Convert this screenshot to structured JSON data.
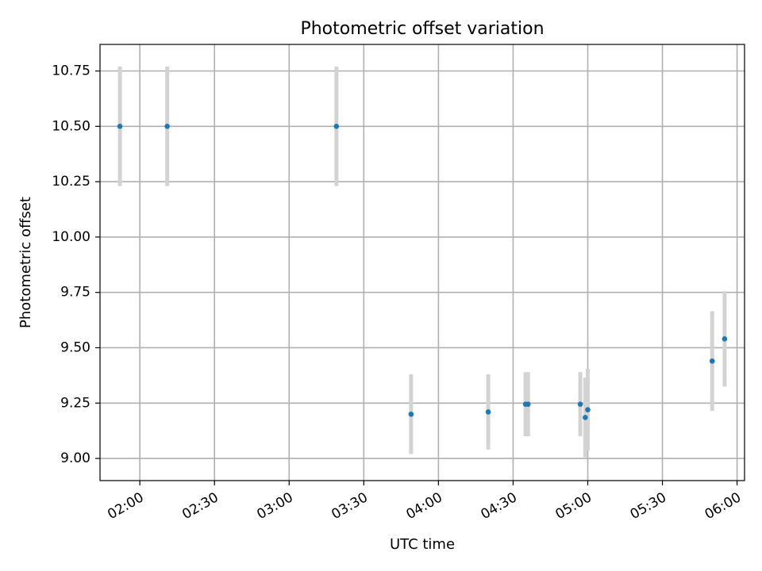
{
  "chart_data": {
    "type": "scatter",
    "title": "Photometric offset variation",
    "xlabel": "UTC time",
    "ylabel": "Photometric offset",
    "grid": true,
    "xlim": [
      "01:44",
      "06:03"
    ],
    "ylim": [
      8.9,
      10.87
    ],
    "x_ticks": [
      "02:00",
      "02:30",
      "03:00",
      "03:30",
      "04:00",
      "04:30",
      "05:00",
      "05:30",
      "06:00"
    ],
    "y_ticks": [
      "9.00",
      "9.25",
      "9.50",
      "9.75",
      "10.00",
      "10.25",
      "10.50",
      "10.75"
    ],
    "series": [
      {
        "marker_color": "#1f77b4",
        "errorbar_color": "#d3d3d3",
        "points": [
          {
            "x": "01:52",
            "y": 10.5,
            "err": 0.27
          },
          {
            "x": "02:11",
            "y": 10.5,
            "err": 0.27
          },
          {
            "x": "03:19",
            "y": 10.5,
            "err": 0.27
          },
          {
            "x": "03:49",
            "y": 9.2,
            "err": 0.18
          },
          {
            "x": "04:20",
            "y": 9.21,
            "err": 0.17
          },
          {
            "x": "04:35",
            "y": 9.245,
            "err": 0.145
          },
          {
            "x": "04:36",
            "y": 9.245,
            "err": 0.145
          },
          {
            "x": "04:57",
            "y": 9.245,
            "err": 0.145
          },
          {
            "x": "04:59",
            "y": 9.185,
            "err": 0.18
          },
          {
            "x": "05:00",
            "y": 9.22,
            "err": 0.185
          },
          {
            "x": "05:50",
            "y": 9.44,
            "err": 0.225
          },
          {
            "x": "05:55",
            "y": 9.54,
            "err": 0.215
          }
        ]
      }
    ]
  }
}
